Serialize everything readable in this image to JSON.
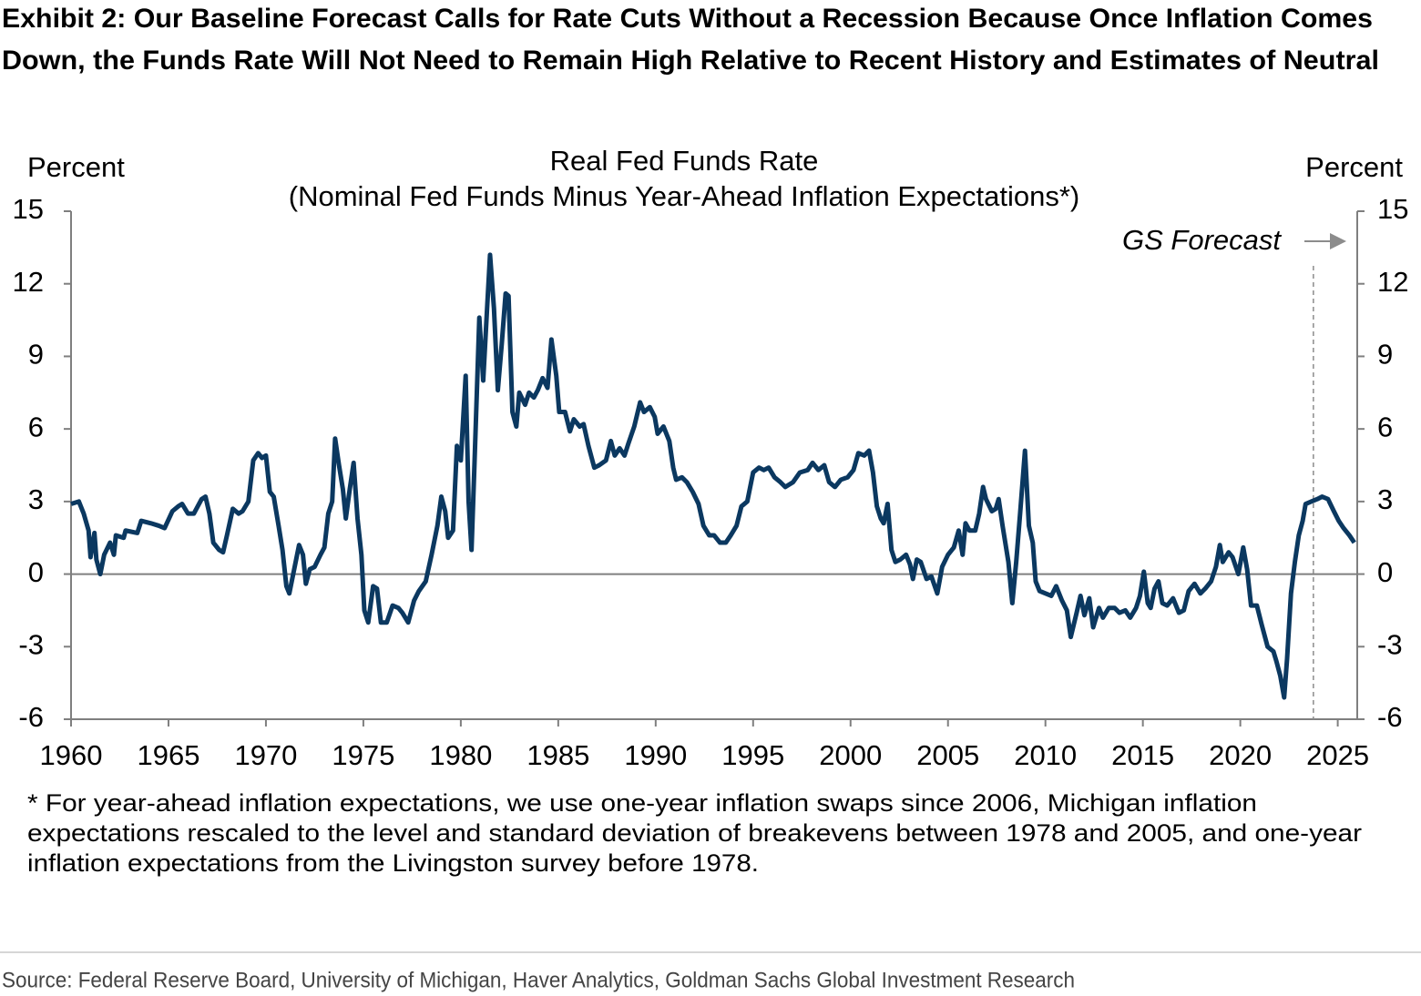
{
  "header": {
    "title": [
      "Exhibit 2: Our Baseline Forecast Calls for Rate Cuts Without a Recession Because Once Inflation Comes",
      "Down, the Funds Rate Will Not Need to Remain High Relative to Recent History and Estimates of Neutral"
    ]
  },
  "chart_data": {
    "type": "line",
    "title": "Real Fed Funds Rate",
    "subtitle": "(Nominal Fed Funds Minus Year-Ahead Inflation Expectations*)",
    "ylabel": "Percent",
    "y2label": "Percent",
    "annotation": "GS Forecast",
    "forecast_start": 2023.75,
    "color": "#0b3860",
    "xlim": [
      1960,
      2026
    ],
    "xticks": [
      1960,
      1965,
      1970,
      1975,
      1980,
      1985,
      1990,
      1995,
      2000,
      2005,
      2010,
      2015,
      2020,
      2025
    ],
    "ylim": [
      -6,
      15
    ],
    "yticks": [
      -6,
      -3,
      0,
      3,
      6,
      9,
      12,
      15
    ],
    "y2lim": [
      -6,
      15
    ],
    "y2ticks": [
      -6,
      -3,
      0,
      3,
      6,
      9,
      12,
      15
    ],
    "x": [
      1960.0,
      1960.4,
      1960.65,
      1960.9,
      1961.0,
      1961.2,
      1961.3,
      1961.5,
      1961.7,
      1962.0,
      1962.2,
      1962.3,
      1962.7,
      1962.8,
      1963.4,
      1963.6,
      1964.1,
      1964.5,
      1964.8,
      1965.2,
      1965.5,
      1965.7,
      1966.0,
      1966.3,
      1966.5,
      1966.7,
      1966.9,
      1967.1,
      1967.3,
      1967.6,
      1967.8,
      1968.0,
      1968.3,
      1968.6,
      1968.8,
      1969.1,
      1969.35,
      1969.6,
      1969.8,
      1970.0,
      1970.2,
      1970.4,
      1970.65,
      1970.85,
      1971.05,
      1971.2,
      1971.4,
      1971.7,
      1971.9,
      1972.05,
      1972.25,
      1972.5,
      1972.8,
      1973.0,
      1973.2,
      1973.4,
      1973.55,
      1973.75,
      1973.95,
      1974.1,
      1974.3,
      1974.5,
      1974.7,
      1974.9,
      1975.05,
      1975.25,
      1975.5,
      1975.7,
      1975.9,
      1976.2,
      1976.5,
      1976.8,
      1977.0,
      1977.3,
      1977.6,
      1977.85,
      1978.2,
      1978.5,
      1978.8,
      1979.0,
      1979.2,
      1979.35,
      1979.6,
      1979.8,
      1980.0,
      1980.25,
      1980.4,
      1980.55,
      1980.7,
      1980.95,
      1981.15,
      1981.35,
      1981.5,
      1981.7,
      1981.9,
      1982.1,
      1982.3,
      1982.45,
      1982.65,
      1982.85,
      1983.0,
      1983.3,
      1983.5,
      1983.75,
      1983.95,
      1984.2,
      1984.45,
      1984.65,
      1984.9,
      1985.05,
      1985.35,
      1985.6,
      1985.8,
      1986.1,
      1986.3,
      1986.55,
      1986.85,
      1987.1,
      1987.45,
      1987.7,
      1987.9,
      1988.15,
      1988.4,
      1988.6,
      1988.9,
      1989.2,
      1989.4,
      1989.7,
      1989.95,
      1990.1,
      1990.4,
      1990.7,
      1990.9,
      1991.05,
      1991.35,
      1991.6,
      1991.9,
      1992.2,
      1992.45,
      1992.75,
      1993.0,
      1993.3,
      1993.6,
      1993.85,
      1994.15,
      1994.4,
      1994.7,
      1995.0,
      1995.3,
      1995.55,
      1995.8,
      1996.1,
      1996.4,
      1996.65,
      1997.05,
      1997.4,
      1997.8,
      1998.05,
      1998.35,
      1998.65,
      1998.9,
      1999.2,
      1999.5,
      1999.85,
      2000.15,
      2000.4,
      2000.7,
      2000.95,
      2001.15,
      2001.35,
      2001.55,
      2001.7,
      2001.9,
      2002.1,
      2002.3,
      2002.55,
      2002.85,
      2003.05,
      2003.2,
      2003.4,
      2003.6,
      2003.9,
      2004.15,
      2004.45,
      2004.7,
      2005.0,
      2005.3,
      2005.55,
      2005.75,
      2005.9,
      2006.1,
      2006.4,
      2006.6,
      2006.8,
      2006.95,
      2007.25,
      2007.45,
      2007.6,
      2007.8,
      2008.1,
      2008.3,
      2008.5,
      2008.7,
      2008.95,
      2009.15,
      2009.35,
      2009.5,
      2009.7,
      2010.0,
      2010.3,
      2010.55,
      2010.85,
      2011.1,
      2011.3,
      2011.6,
      2011.8,
      2012.0,
      2012.25,
      2012.45,
      2012.75,
      2012.95,
      2013.25,
      2013.55,
      2013.8,
      2014.1,
      2014.35,
      2014.65,
      2014.85,
      2015.05,
      2015.25,
      2015.4,
      2015.6,
      2015.8,
      2016.0,
      2016.25,
      2016.55,
      2016.85,
      2017.1,
      2017.35,
      2017.65,
      2017.95,
      2018.2,
      2018.5,
      2018.75,
      2018.95,
      2019.1,
      2019.4,
      2019.6,
      2019.9,
      2020.15,
      2020.35,
      2020.55,
      2020.85,
      2021.1,
      2021.4,
      2021.7,
      2021.85,
      2022.05,
      2022.25,
      2022.4,
      2022.6,
      2022.8,
      2023.0,
      2023.2,
      2023.35,
      2023.65,
      2023.95,
      2024.2,
      2024.5,
      2024.8,
      2025.05,
      2025.3,
      2025.6,
      2025.85
    ],
    "values": [
      2.9,
      3.0,
      2.5,
      1.8,
      0.7,
      1.7,
      0.6,
      0.0,
      0.8,
      1.3,
      0.8,
      1.6,
      1.5,
      1.8,
      1.7,
      2.2,
      2.1,
      2.0,
      1.9,
      2.6,
      2.8,
      2.9,
      2.5,
      2.5,
      2.8,
      3.1,
      3.2,
      2.5,
      1.3,
      1.0,
      0.9,
      1.6,
      2.7,
      2.5,
      2.6,
      3.0,
      4.7,
      5.0,
      4.8,
      4.9,
      3.4,
      3.2,
      2.0,
      1.0,
      -0.5,
      -0.8,
      0.0,
      1.2,
      0.8,
      -0.4,
      0.2,
      0.3,
      0.8,
      1.1,
      2.5,
      3.0,
      5.6,
      4.5,
      3.5,
      2.3,
      3.5,
      4.6,
      2.3,
      0.8,
      -1.5,
      -2.0,
      -0.5,
      -0.6,
      -2.0,
      -2.0,
      -1.3,
      -1.4,
      -1.6,
      -2.0,
      -1.1,
      -0.7,
      -0.3,
      0.8,
      2.0,
      3.2,
      2.6,
      1.5,
      1.8,
      5.3,
      4.7,
      8.2,
      3.0,
      1.0,
      4.5,
      10.6,
      8.0,
      11.0,
      13.2,
      11.0,
      7.6,
      9.5,
      11.6,
      11.5,
      6.7,
      6.1,
      7.5,
      7.0,
      7.5,
      7.3,
      7.6,
      8.1,
      7.7,
      9.7,
      8.2,
      6.7,
      6.7,
      5.9,
      6.4,
      6.1,
      6.2,
      5.3,
      4.4,
      4.5,
      4.7,
      5.5,
      4.9,
      5.2,
      4.9,
      5.4,
      6.1,
      7.1,
      6.7,
      6.9,
      6.5,
      5.8,
      6.1,
      5.5,
      4.4,
      3.9,
      4.0,
      3.8,
      3.4,
      2.9,
      2.0,
      1.6,
      1.6,
      1.3,
      1.3,
      1.6,
      2.0,
      2.8,
      3.0,
      4.2,
      4.4,
      4.3,
      4.4,
      4.0,
      3.8,
      3.6,
      3.8,
      4.2,
      4.3,
      4.6,
      4.3,
      4.5,
      3.8,
      3.6,
      3.9,
      4.0,
      4.3,
      5.0,
      4.9,
      5.1,
      4.2,
      2.8,
      2.3,
      2.1,
      2.9,
      1.0,
      0.5,
      0.6,
      0.8,
      0.4,
      -0.2,
      0.6,
      0.5,
      -0.2,
      -0.1,
      -0.8,
      0.3,
      0.8,
      1.1,
      1.8,
      0.8,
      2.1,
      1.8,
      1.8,
      2.5,
      3.6,
      3.1,
      2.6,
      2.7,
      3.1,
      2.0,
      0.5,
      -1.2,
      0.5,
      2.5,
      5.1,
      2.0,
      1.3,
      -0.3,
      -0.7,
      -0.8,
      -0.9,
      -0.5,
      -1.1,
      -1.5,
      -2.6,
      -1.6,
      -0.9,
      -1.7,
      -1.0,
      -2.2,
      -1.4,
      -1.8,
      -1.4,
      -1.4,
      -1.6,
      -1.5,
      -1.8,
      -1.4,
      -0.9,
      0.1,
      -1.2,
      -1.4,
      -0.6,
      -0.3,
      -1.2,
      -1.3,
      -1.0,
      -1.6,
      -1.5,
      -0.7,
      -0.4,
      -0.8,
      -0.6,
      -0.3,
      0.3,
      1.2,
      0.5,
      0.9,
      0.7,
      0.0,
      1.1,
      0.2,
      -1.3,
      -1.3,
      -2.1,
      -3.0,
      -3.2,
      -3.6,
      -4.2,
      -5.1,
      -3.5,
      -0.8,
      0.5,
      1.6,
      2.2,
      2.9,
      3.0,
      3.1,
      3.2,
      3.1,
      2.6,
      2.2,
      1.9,
      1.6,
      1.3
    ]
  },
  "footnote": [
    "* For year-ahead inflation expectations, we use one-year inflation swaps since 2006, Michigan inflation",
    "expectations rescaled to the level and standard deviation of breakevens between 1978 and 2005, and one-year",
    "inflation expectations from the Livingston survey before 1978."
  ],
  "source": "Source: Federal Reserve Board, University of Michigan, Haver Analytics, Goldman Sachs Global Investment Research"
}
